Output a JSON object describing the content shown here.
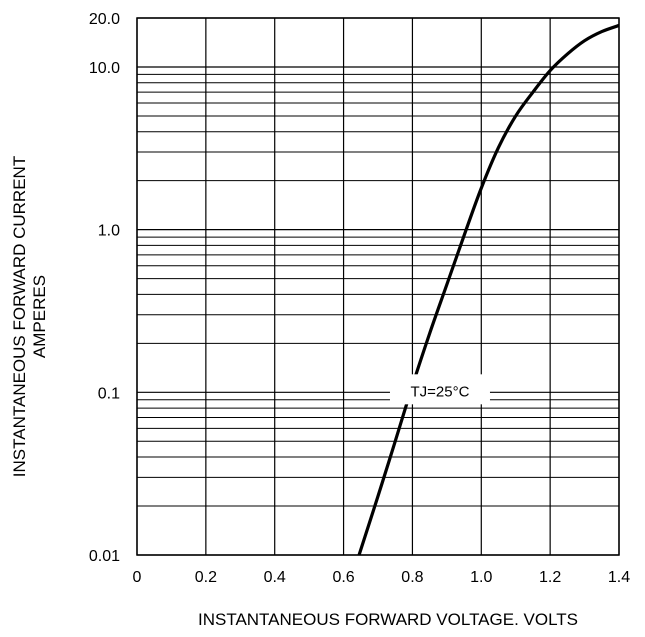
{
  "chart_data": {
    "type": "line",
    "xlabel": "INSTANTANEOUS FORWARD VOLTAGE. VOLTS",
    "ylabel_line1": "INSTANTANEOUS FORWARD CURRENT",
    "ylabel_line2": "AMPERES",
    "xlim": [
      0,
      1.4
    ],
    "ylim": [
      0.01,
      20.0
    ],
    "yscale": "log",
    "grid": true,
    "x_ticks": [
      {
        "value": 0,
        "label": "0"
      },
      {
        "value": 0.2,
        "label": "0.2"
      },
      {
        "value": 0.4,
        "label": "0.4"
      },
      {
        "value": 0.6,
        "label": "0.6"
      },
      {
        "value": 0.8,
        "label": "0.8"
      },
      {
        "value": 1.0,
        "label": "1.0"
      },
      {
        "value": 1.2,
        "label": "1.2"
      },
      {
        "value": 1.4,
        "label": "1.4"
      }
    ],
    "y_ticks": [
      {
        "value": 0.01,
        "label": "0.01"
      },
      {
        "value": 0.1,
        "label": "0.1"
      },
      {
        "value": 1.0,
        "label": "1.0"
      },
      {
        "value": 10.0,
        "label": "10.0"
      },
      {
        "value": 20.0,
        "label": "20.0"
      }
    ],
    "annotation": {
      "text": "TJ=25°C",
      "x": 0.88,
      "y": 0.1
    },
    "series": [
      {
        "color": "#000000",
        "x": [
          0.645,
          0.7,
          0.75,
          0.8,
          0.85,
          0.9,
          0.95,
          1.0,
          1.05,
          1.1,
          1.15,
          1.2,
          1.25,
          1.3,
          1.35,
          1.4
        ],
        "y": [
          0.01,
          0.023,
          0.05,
          0.11,
          0.23,
          0.46,
          0.92,
          1.8,
          3.2,
          5.0,
          7.0,
          9.5,
          12.0,
          14.5,
          16.5,
          18.0
        ]
      }
    ]
  }
}
